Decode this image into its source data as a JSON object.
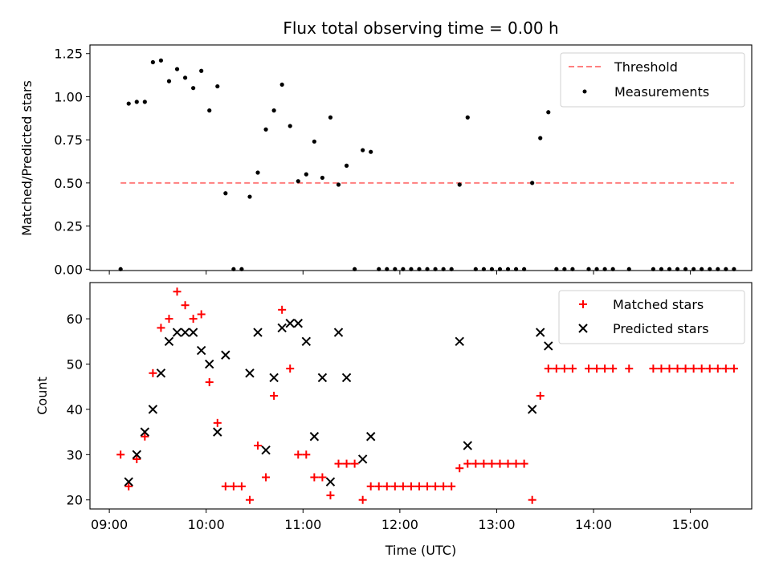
{
  "chart_data": [
    {
      "type": "scatter",
      "title": "Flux total observing time = 0.00 h",
      "xlabel": "",
      "ylabel": "Matched/Predicted stars",
      "xlim": [
        "09:00",
        "15:30"
      ],
      "ylim": [
        0,
        1.25
      ],
      "x_ticks": [
        "09:00",
        "10:00",
        "11:00",
        "12:00",
        "13:00",
        "14:00",
        "15:00"
      ],
      "y_ticks": [
        "0.00",
        "0.25",
        "0.50",
        "0.75",
        "1.00",
        "1.25"
      ],
      "legend_position": "top-right",
      "threshold": {
        "name": "Threshold",
        "value": 0.5,
        "x_range": [
          "09:07",
          "15:27"
        ],
        "color": "#ff7f7f",
        "style": "dashed"
      },
      "series": [
        {
          "name": "Measurements",
          "color": "#000000",
          "marker": "dot",
          "points": [
            [
              "09:07",
              0.0
            ],
            [
              "09:12",
              0.96
            ],
            [
              "09:17",
              0.97
            ],
            [
              "09:22",
              0.97
            ],
            [
              "09:27",
              1.2
            ],
            [
              "09:32",
              1.21
            ],
            [
              "09:37",
              1.09
            ],
            [
              "09:42",
              1.16
            ],
            [
              "09:47",
              1.11
            ],
            [
              "09:52",
              1.05
            ],
            [
              "09:57",
              1.15
            ],
            [
              "10:02",
              0.92
            ],
            [
              "10:07",
              1.06
            ],
            [
              "10:12",
              0.44
            ],
            [
              "10:17",
              0.0
            ],
            [
              "10:22",
              0.0
            ],
            [
              "10:27",
              0.42
            ],
            [
              "10:32",
              0.56
            ],
            [
              "10:37",
              0.81
            ],
            [
              "10:42",
              0.92
            ],
            [
              "10:47",
              1.07
            ],
            [
              "10:52",
              0.83
            ],
            [
              "10:57",
              0.51
            ],
            [
              "11:02",
              0.55
            ],
            [
              "11:07",
              0.74
            ],
            [
              "11:12",
              0.53
            ],
            [
              "11:17",
              0.88
            ],
            [
              "11:22",
              0.49
            ],
            [
              "11:27",
              0.6
            ],
            [
              "11:32",
              0.0
            ],
            [
              "11:37",
              0.69
            ],
            [
              "11:42",
              0.68
            ],
            [
              "11:47",
              0.0
            ],
            [
              "11:52",
              0.0
            ],
            [
              "11:57",
              0.0
            ],
            [
              "12:02",
              0.0
            ],
            [
              "12:07",
              0.0
            ],
            [
              "12:12",
              0.0
            ],
            [
              "12:17",
              0.0
            ],
            [
              "12:22",
              0.0
            ],
            [
              "12:27",
              0.0
            ],
            [
              "12:32",
              0.0
            ],
            [
              "12:37",
              0.49
            ],
            [
              "12:42",
              0.88
            ],
            [
              "12:47",
              0.0
            ],
            [
              "12:52",
              0.0
            ],
            [
              "12:57",
              0.0
            ],
            [
              "13:02",
              0.0
            ],
            [
              "13:07",
              0.0
            ],
            [
              "13:12",
              0.0
            ],
            [
              "13:17",
              0.0
            ],
            [
              "13:22",
              0.5
            ],
            [
              "13:27",
              0.76
            ],
            [
              "13:32",
              0.91
            ],
            [
              "13:37",
              0.0
            ],
            [
              "13:42",
              0.0
            ],
            [
              "13:47",
              0.0
            ],
            [
              "13:57",
              0.0
            ],
            [
              "14:02",
              0.0
            ],
            [
              "14:07",
              0.0
            ],
            [
              "14:12",
              0.0
            ],
            [
              "14:22",
              0.0
            ],
            [
              "14:37",
              0.0
            ],
            [
              "14:42",
              0.0
            ],
            [
              "14:47",
              0.0
            ],
            [
              "14:52",
              0.0
            ],
            [
              "14:57",
              0.0
            ],
            [
              "15:02",
              0.0
            ],
            [
              "15:07",
              0.0
            ],
            [
              "15:12",
              0.0
            ],
            [
              "15:17",
              0.0
            ],
            [
              "15:22",
              0.0
            ],
            [
              "15:27",
              0.0
            ]
          ]
        }
      ]
    },
    {
      "type": "scatter",
      "title": "",
      "xlabel": "Time (UTC)",
      "ylabel": "Count",
      "xlim": [
        "09:00",
        "15:30"
      ],
      "ylim": [
        18,
        68
      ],
      "x_ticks": [
        "09:00",
        "10:00",
        "11:00",
        "12:00",
        "13:00",
        "14:00",
        "15:00"
      ],
      "y_ticks": [
        "20",
        "30",
        "40",
        "50",
        "60"
      ],
      "legend_position": "top-right",
      "series": [
        {
          "name": "Matched stars",
          "color": "#ff0000",
          "marker": "plus",
          "points": [
            [
              "09:07",
              30
            ],
            [
              "09:12",
              23
            ],
            [
              "09:17",
              29
            ],
            [
              "09:22",
              34
            ],
            [
              "09:27",
              48
            ],
            [
              "09:32",
              58
            ],
            [
              "09:37",
              60
            ],
            [
              "09:42",
              66
            ],
            [
              "09:47",
              63
            ],
            [
              "09:52",
              60
            ],
            [
              "09:57",
              61
            ],
            [
              "10:02",
              46
            ],
            [
              "10:07",
              37
            ],
            [
              "10:12",
              23
            ],
            [
              "10:17",
              23
            ],
            [
              "10:22",
              23
            ],
            [
              "10:27",
              20
            ],
            [
              "10:32",
              32
            ],
            [
              "10:37",
              25
            ],
            [
              "10:42",
              43
            ],
            [
              "10:47",
              62
            ],
            [
              "10:52",
              49
            ],
            [
              "10:57",
              30
            ],
            [
              "11:02",
              30
            ],
            [
              "11:07",
              25
            ],
            [
              "11:12",
              25
            ],
            [
              "11:17",
              21
            ],
            [
              "11:22",
              28
            ],
            [
              "11:27",
              28
            ],
            [
              "11:32",
              28
            ],
            [
              "11:37",
              20
            ],
            [
              "11:42",
              23
            ],
            [
              "11:47",
              23
            ],
            [
              "11:52",
              23
            ],
            [
              "11:57",
              23
            ],
            [
              "12:02",
              23
            ],
            [
              "12:07",
              23
            ],
            [
              "12:12",
              23
            ],
            [
              "12:17",
              23
            ],
            [
              "12:22",
              23
            ],
            [
              "12:27",
              23
            ],
            [
              "12:32",
              23
            ],
            [
              "12:37",
              27
            ],
            [
              "12:42",
              28
            ],
            [
              "12:47",
              28
            ],
            [
              "12:52",
              28
            ],
            [
              "12:57",
              28
            ],
            [
              "13:02",
              28
            ],
            [
              "13:07",
              28
            ],
            [
              "13:12",
              28
            ],
            [
              "13:17",
              28
            ],
            [
              "13:22",
              20
            ],
            [
              "13:27",
              43
            ],
            [
              "13:32",
              49
            ],
            [
              "13:37",
              49
            ],
            [
              "13:42",
              49
            ],
            [
              "13:47",
              49
            ],
            [
              "13:57",
              49
            ],
            [
              "14:02",
              49
            ],
            [
              "14:07",
              49
            ],
            [
              "14:12",
              49
            ],
            [
              "14:22",
              49
            ],
            [
              "14:37",
              49
            ],
            [
              "14:42",
              49
            ],
            [
              "14:47",
              49
            ],
            [
              "14:52",
              49
            ],
            [
              "14:57",
              49
            ],
            [
              "15:02",
              49
            ],
            [
              "15:07",
              49
            ],
            [
              "15:12",
              49
            ],
            [
              "15:17",
              49
            ],
            [
              "15:22",
              49
            ],
            [
              "15:27",
              49
            ]
          ]
        },
        {
          "name": "Predicted stars",
          "color": "#000000",
          "marker": "x",
          "points": [
            [
              "09:12",
              24
            ],
            [
              "09:17",
              30
            ],
            [
              "09:22",
              35
            ],
            [
              "09:27",
              40
            ],
            [
              "09:32",
              48
            ],
            [
              "09:37",
              55
            ],
            [
              "09:42",
              57
            ],
            [
              "09:47",
              57
            ],
            [
              "09:52",
              57
            ],
            [
              "09:57",
              53
            ],
            [
              "10:02",
              50
            ],
            [
              "10:07",
              35
            ],
            [
              "10:12",
              52
            ],
            [
              "10:27",
              48
            ],
            [
              "10:32",
              57
            ],
            [
              "10:37",
              31
            ],
            [
              "10:42",
              47
            ],
            [
              "10:47",
              58
            ],
            [
              "10:52",
              59
            ],
            [
              "10:57",
              59
            ],
            [
              "11:02",
              55
            ],
            [
              "11:07",
              34
            ],
            [
              "11:12",
              47
            ],
            [
              "11:17",
              24
            ],
            [
              "11:22",
              57
            ],
            [
              "11:27",
              47
            ],
            [
              "11:37",
              29
            ],
            [
              "11:42",
              34
            ],
            [
              "12:37",
              55
            ],
            [
              "12:42",
              32
            ],
            [
              "13:22",
              40
            ],
            [
              "13:27",
              57
            ],
            [
              "13:32",
              54
            ]
          ]
        }
      ]
    }
  ]
}
